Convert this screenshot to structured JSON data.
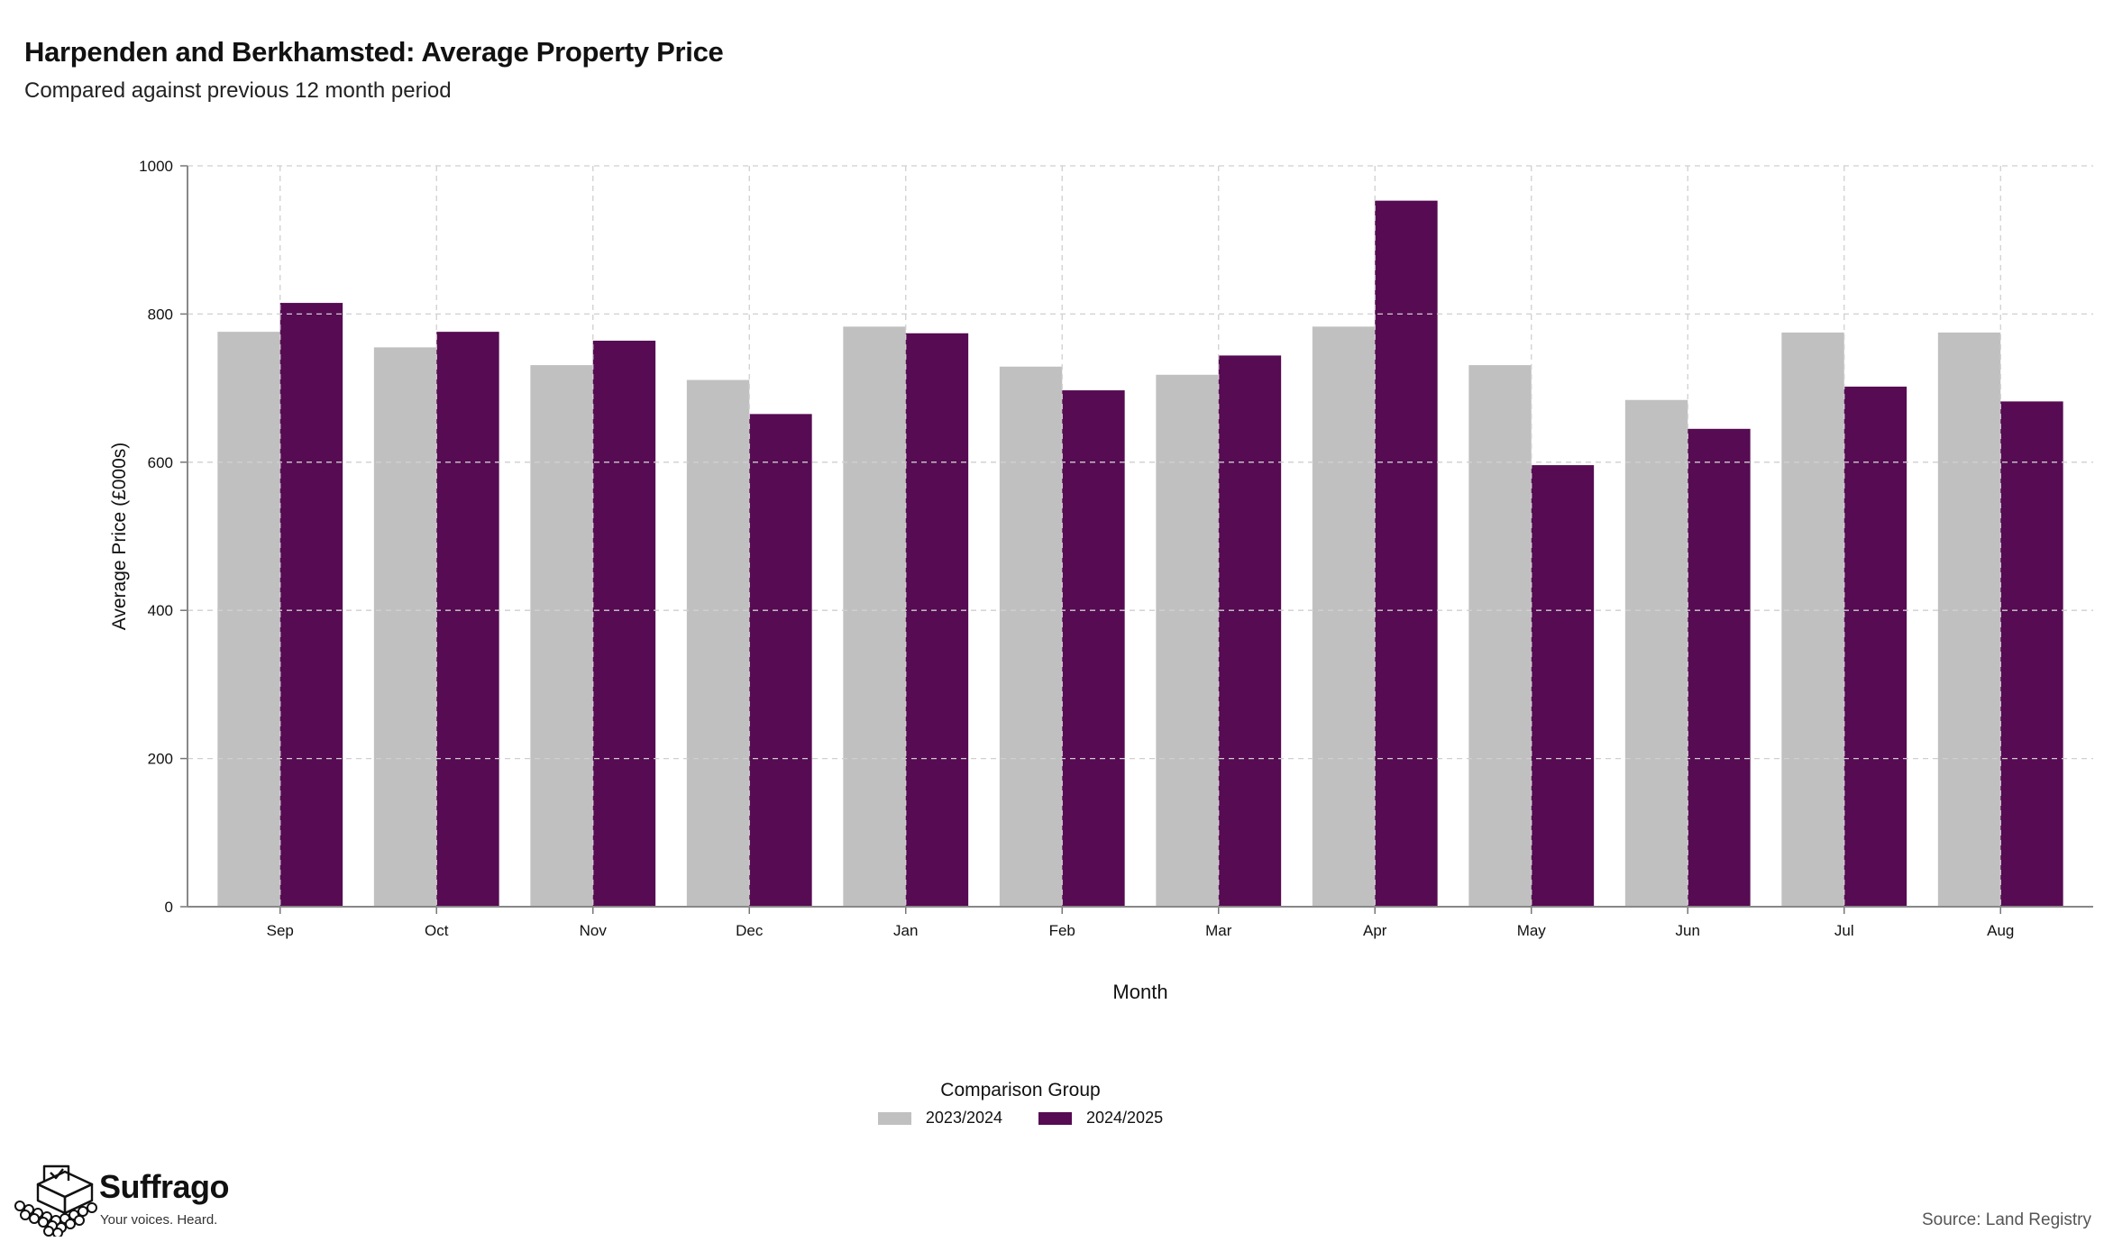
{
  "header": {
    "title": "Harpenden and Berkhamsted: Average Property Price",
    "subtitle": "Compared against previous 12 month period"
  },
  "chart_data": {
    "type": "bar",
    "title": "Harpenden and Berkhamsted: Average Property Price",
    "subtitle": "Compared against previous 12 month period",
    "xlabel": "Month",
    "ylabel": "Average Price (£000s)",
    "ylim": [
      0,
      1000
    ],
    "yticks": [
      0,
      200,
      400,
      600,
      800,
      1000
    ],
    "grid": true,
    "legend_title": "Comparison Group",
    "legend_position": "bottom",
    "categories": [
      "Sep",
      "Oct",
      "Nov",
      "Dec",
      "Jan",
      "Feb",
      "Mar",
      "Apr",
      "May",
      "Jun",
      "Jul",
      "Aug"
    ],
    "series": [
      {
        "name": "2023/2024",
        "color": "#c0c0c0",
        "values": [
          776,
          755,
          731,
          711,
          783,
          729,
          718,
          783,
          731,
          684,
          775,
          775
        ]
      },
      {
        "name": "2024/2025",
        "color": "#560b52",
        "values": [
          815,
          776,
          764,
          665,
          774,
          697,
          744,
          953,
          596,
          645,
          702,
          682
        ]
      }
    ]
  },
  "branding": {
    "name": "Suffrago",
    "tagline": "Your voices. Heard."
  },
  "footer": {
    "source": "Source: Land Registry"
  }
}
